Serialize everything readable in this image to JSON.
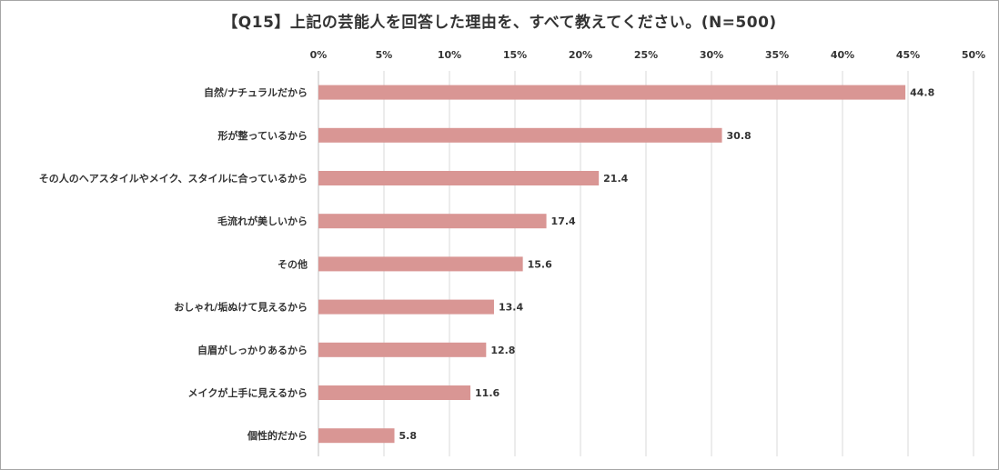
{
  "chart_data": {
    "type": "bar",
    "orientation": "horizontal",
    "title": "【Q15】上記の芸能人を回答した理由を、すべて教えてください。(N=500)",
    "xlabel": "",
    "ylabel": "",
    "xlim": [
      0,
      50
    ],
    "tick_values": [
      0,
      5,
      10,
      15,
      20,
      25,
      30,
      35,
      40,
      45,
      50
    ],
    "tick_labels": [
      "0%",
      "5%",
      "10%",
      "15%",
      "20%",
      "25%",
      "30%",
      "35%",
      "40%",
      "45%",
      "50%"
    ],
    "axis_position": "top",
    "grid": true,
    "bar_color": "#d99694",
    "categories": [
      "自然/ナチュラルだから",
      "形が整っているから",
      "その人のヘアスタイルやメイク、スタイルに合っているから",
      "毛流れが美しいから",
      "その他",
      "おしゃれ/垢ぬけて見えるから",
      "自眉がしっかりあるから",
      "メイクが上手に見えるから",
      "個性的だから"
    ],
    "values": [
      44.8,
      30.8,
      21.4,
      17.4,
      15.6,
      13.4,
      12.8,
      11.6,
      5.8
    ],
    "value_labels": [
      "44.8",
      "30.8",
      "21.4",
      "17.4",
      "15.6",
      "13.4",
      "12.8",
      "11.6",
      "5.8"
    ]
  }
}
